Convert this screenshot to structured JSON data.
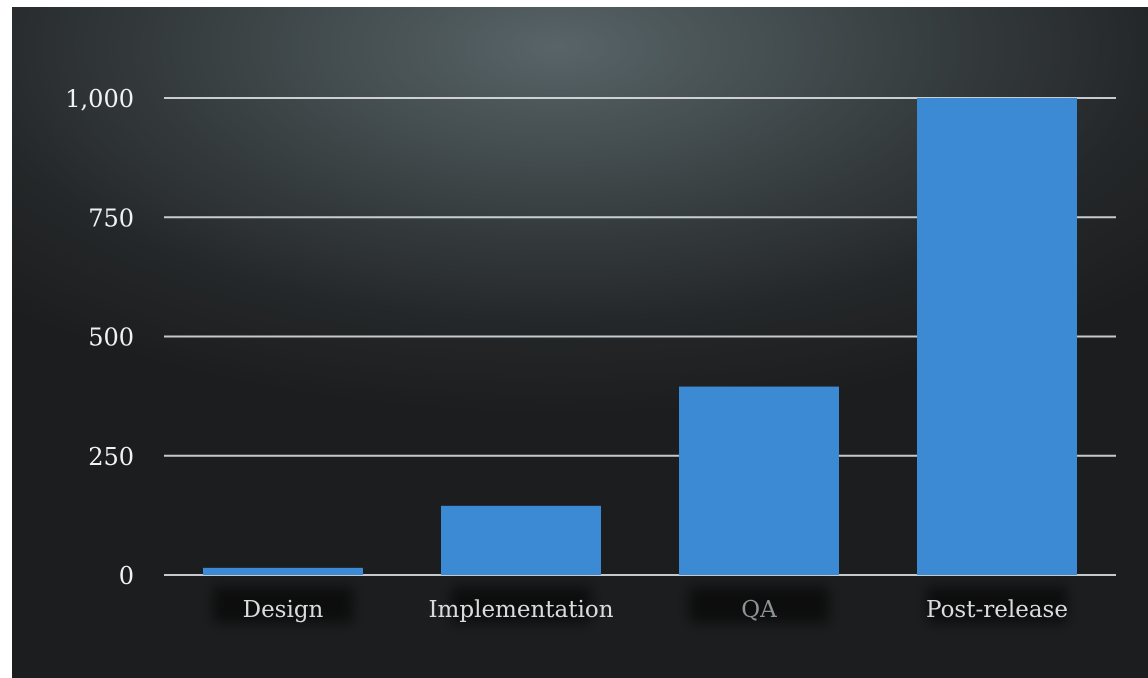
{
  "chart_data": {
    "type": "bar",
    "title": "",
    "xlabel": "",
    "ylabel": "",
    "categories": [
      "Design",
      "Implementation",
      "QA",
      "Post-release"
    ],
    "values": [
      15,
      145,
      395,
      1000
    ],
    "ylim": [
      0,
      1000
    ],
    "yticks": [
      0,
      250,
      500,
      750,
      1000
    ],
    "ytick_labels": [
      "0",
      "250",
      "500",
      "750",
      "1,000"
    ],
    "grid": true,
    "legend": "none",
    "colors": {
      "bar": "#3d8ad4",
      "gridline": "#e4e8ea",
      "tick_label": "#f0f2f3",
      "category_label": "#d8dcde",
      "category_label_dim": "#8d9396"
    }
  }
}
